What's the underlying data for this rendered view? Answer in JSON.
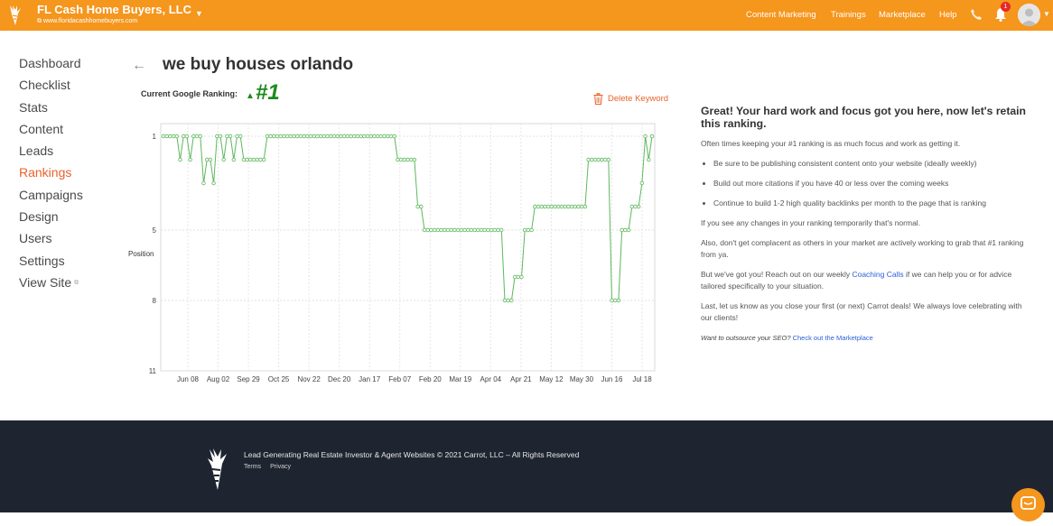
{
  "header": {
    "site_name": "FL Cash Home Buyers, LLC",
    "site_url": "www.floridacashhomebuyers.com",
    "nav": [
      "Content Marketing",
      "Trainings",
      "Marketplace",
      "Help"
    ],
    "notification_count": "1",
    "accent": "#f5961d"
  },
  "sidebar": {
    "items": [
      "Dashboard",
      "Checklist",
      "Stats",
      "Content",
      "Leads",
      "Rankings",
      "Campaigns",
      "Design",
      "Users",
      "Settings",
      "View Site"
    ],
    "active": "Rankings"
  },
  "main": {
    "title": "we buy houses orlando",
    "rank_label": "Current Google Ranking:",
    "rank_value": "#1",
    "delete_label": "Delete Keyword"
  },
  "chart_data": {
    "type": "line",
    "ylabel": "Position",
    "y_inverted": true,
    "ylim": [
      1,
      11
    ],
    "yticks": [
      1,
      5,
      8,
      11
    ],
    "xticks": [
      "Jun 08",
      "Aug 02",
      "Sep 29",
      "Oct 25",
      "Nov 22",
      "Dec 20",
      "Jan 17",
      "Feb 07",
      "Feb 20",
      "Mar 19",
      "Apr 04",
      "Apr 21",
      "May 12",
      "May 30",
      "Jun 16",
      "Jul 18"
    ],
    "grid": true,
    "series": [
      {
        "color": "#5cb85c",
        "values": [
          1,
          1,
          1,
          1,
          1,
          2,
          1,
          1,
          2,
          1,
          1,
          1,
          3,
          2,
          2,
          3,
          1,
          1,
          2,
          1,
          1,
          2,
          1,
          1,
          2,
          2,
          2,
          2,
          2,
          2,
          2,
          1,
          1,
          1,
          1,
          1,
          1,
          1,
          1,
          1,
          1,
          1,
          1,
          1,
          1,
          1,
          1,
          1,
          1,
          1,
          1,
          1,
          1,
          1,
          1,
          1,
          1,
          1,
          1,
          1,
          1,
          1,
          1,
          1,
          1,
          1,
          1,
          1,
          1,
          1,
          2,
          2,
          2,
          2,
          2,
          2,
          4,
          4,
          5,
          5,
          5,
          5,
          5,
          5,
          5,
          5,
          5,
          5,
          5,
          5,
          5,
          5,
          5,
          5,
          5,
          5,
          5,
          5,
          5,
          5,
          5,
          5,
          8,
          8,
          8,
          7,
          7,
          7,
          5,
          5,
          5,
          4,
          4,
          4,
          4,
          4,
          4,
          4,
          4,
          4,
          4,
          4,
          4,
          4,
          4,
          4,
          4,
          2,
          2,
          2,
          2,
          2,
          2,
          2,
          8,
          8,
          8,
          5,
          5,
          5,
          4,
          4,
          4,
          3,
          1,
          2,
          1
        ]
      }
    ]
  },
  "info": {
    "heading": "Great! Your hard work and focus got you here, now let's retain this ranking.",
    "p1": "Often times keeping your #1 ranking is as much focus and work as getting it.",
    "bullets": [
      "Be sure to be publishing consistent content onto your website (ideally weekly)",
      "Build out more citations if you have 40 or less over the coming weeks",
      "Continue to build 1-2 high quality backlinks per month to the page that is ranking"
    ],
    "p2": "If you see any changes in your ranking temporarily that's normal.",
    "p3": "Also, don't get complacent as others in your market are actively working to grab that #1 ranking from ya.",
    "p4_pre": "But we've got you! Reach out on our weekly ",
    "p4_link": "Coaching Calls",
    "p4_post": " if we can help you or for advice tailored specifically to your situation.",
    "p5": "Last, let us know as you close your first (or next) Carrot deals! We always love celebrating with our clients!",
    "p6_pre": "Want to outsource your SEO?",
    "p6_link": "Check out the Marketplace"
  },
  "footer": {
    "copyright": "Lead Generating Real Estate Investor & Agent Websites © 2021 Carrot, LLC – All Rights Reserved",
    "links": [
      "Terms",
      "Privacy"
    ]
  }
}
